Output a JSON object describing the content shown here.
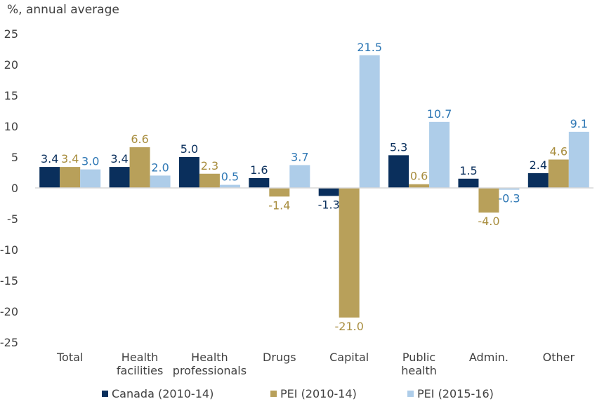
{
  "chart_data": {
    "type": "bar",
    "ylabel": "%, annual average",
    "ylim": [
      -25,
      25
    ],
    "yticks": [
      25,
      20,
      15,
      10,
      5,
      0,
      -5,
      -10,
      -15,
      -20,
      -25
    ],
    "grid": false,
    "legend_position": "bottom",
    "categories": [
      [
        "Total"
      ],
      [
        "Health",
        "facilities"
      ],
      [
        "Health",
        "professionals"
      ],
      [
        "Drugs"
      ],
      [
        "Capital"
      ],
      [
        "Public",
        "health"
      ],
      [
        "Admin."
      ],
      [
        "Other"
      ]
    ],
    "series": [
      {
        "name": "Canada (2010-14)",
        "color": "#0a2f5c",
        "label_color": "#0a2f5c",
        "values": [
          3.4,
          3.4,
          5.0,
          1.6,
          -1.3,
          5.3,
          1.5,
          2.4
        ],
        "labels": [
          "3.4",
          "3.4",
          "5.0",
          "1.6",
          "-1.3",
          "5.3",
          "1.5",
          "2.4"
        ]
      },
      {
        "name": "PEI (2010-14)",
        "color": "#b8a05a",
        "label_color": "#a88d3e",
        "values": [
          3.4,
          6.6,
          2.3,
          -1.4,
          -21.0,
          0.6,
          -4.0,
          4.6
        ],
        "labels": [
          "3.4",
          "6.6",
          "2.3",
          "-1.4",
          "-21.0",
          "0.6",
          "-4.0",
          "4.6"
        ]
      },
      {
        "name": "PEI (2015-16)",
        "color": "#aecde9",
        "label_color": "#2f78b5",
        "values": [
          3.0,
          2.0,
          0.5,
          3.7,
          21.5,
          10.7,
          -0.3,
          9.1
        ],
        "labels": [
          "3.0",
          "2.0",
          "0.5",
          "3.7",
          "21.5",
          "10.7",
          "-0.3",
          "9.1"
        ]
      }
    ]
  }
}
